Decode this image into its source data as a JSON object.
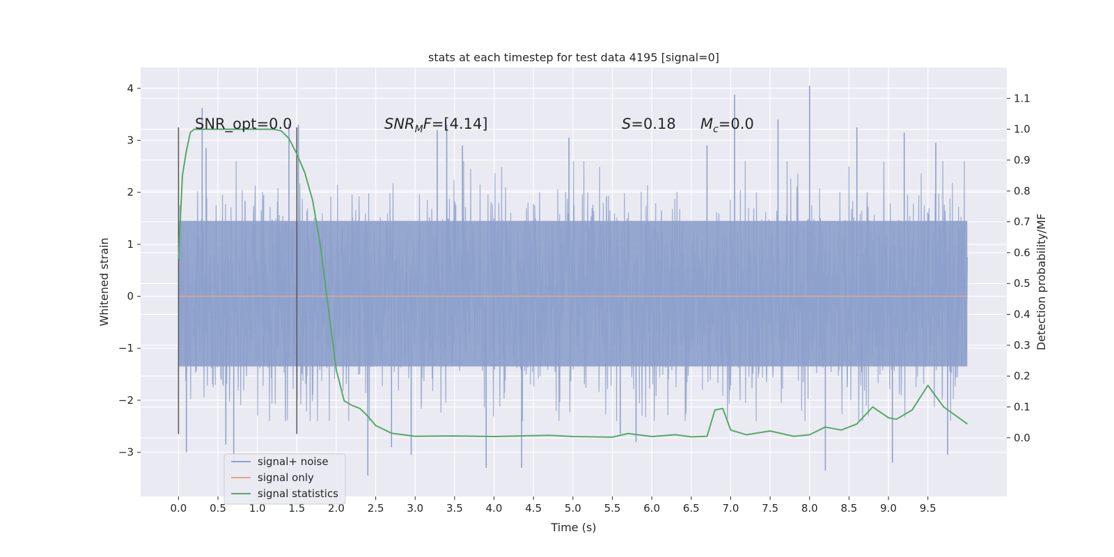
{
  "chart_data": {
    "type": "line",
    "title": "stats at each timestep for test data 4195 [signal=0]",
    "xlabel": "Time (s)",
    "ylabel": "Whitened strain",
    "y2label": "Detection probability/MF",
    "xlim": [
      -0.48,
      10.5
    ],
    "ylim": [
      -3.85,
      4.4
    ],
    "y2lim": [
      -0.19,
      1.2
    ],
    "x_ticks": [
      "0.0",
      "0.5",
      "1.0",
      "1.5",
      "2.0",
      "2.5",
      "3.0",
      "3.5",
      "4.0",
      "4.5",
      "5.0",
      "5.5",
      "6.0",
      "6.5",
      "7.0",
      "7.5",
      "8.0",
      "8.5",
      "9.0",
      "9.5"
    ],
    "y_ticks": [
      "−3",
      "−2",
      "−1",
      "0",
      "1",
      "2",
      "3",
      "4"
    ],
    "y2_ticks": [
      "0.0",
      "0.1",
      "0.2",
      "0.3",
      "0.4",
      "0.5",
      "0.6",
      "0.7",
      "0.8",
      "0.9",
      "1.0",
      "1.1"
    ],
    "grid": true,
    "legend_position": "lower-left",
    "annotations": {
      "snr_opt": "SNR_opt=0.0",
      "snr_mf_label": "SNR",
      "snr_mf_sub": "M",
      "snr_mf_f": "F",
      "snr_mf_value": "=[4.14]",
      "s_label": "S",
      "s_value": "=0.18",
      "mc_label": "M",
      "mc_sub": "c",
      "mc_value": "=0.0"
    },
    "vertical_lines": [
      {
        "x": 0.0,
        "y_range": [
          -2.65,
          3.25
        ]
      },
      {
        "x": 1.5,
        "y_range": [
          -2.65,
          3.25
        ]
      }
    ],
    "series": [
      {
        "name": "signal+ noise",
        "color": "#8da0cb",
        "x_range": [
          0.0,
          10.0
        ],
        "noise_band": [
          -1.35,
          1.45
        ],
        "peaks": [
          {
            "x": 0.02,
            "y": 1.75
          },
          {
            "x": 0.1,
            "y": -3.0
          },
          {
            "x": 0.3,
            "y": 3.62
          },
          {
            "x": 0.35,
            "y": 2.85
          },
          {
            "x": 0.6,
            "y": -2.85
          },
          {
            "x": 0.7,
            "y": -3.2
          },
          {
            "x": 1.4,
            "y": 3.32
          },
          {
            "x": 1.52,
            "y": 3.3
          },
          {
            "x": 2.4,
            "y": -3.45
          },
          {
            "x": 2.7,
            "y": -2.9
          },
          {
            "x": 2.95,
            "y": -3.05
          },
          {
            "x": 3.28,
            "y": 3.2
          },
          {
            "x": 3.4,
            "y": 3.3
          },
          {
            "x": 3.6,
            "y": 2.9
          },
          {
            "x": 3.9,
            "y": -3.3
          },
          {
            "x": 4.35,
            "y": -3.3
          },
          {
            "x": 4.95,
            "y": 3.05
          },
          {
            "x": 5.6,
            "y": -2.65
          },
          {
            "x": 5.8,
            "y": -2.8
          },
          {
            "x": 6.7,
            "y": 2.9
          },
          {
            "x": 7.05,
            "y": 3.88
          },
          {
            "x": 7.6,
            "y": 3.4
          },
          {
            "x": 8.0,
            "y": 4.05
          },
          {
            "x": 8.2,
            "y": -3.35
          },
          {
            "x": 8.6,
            "y": 3.25
          },
          {
            "x": 9.05,
            "y": -3.2
          },
          {
            "x": 9.2,
            "y": 3.15
          },
          {
            "x": 9.6,
            "y": 2.95
          },
          {
            "x": 9.75,
            "y": -3.05
          }
        ]
      },
      {
        "name": "signal only",
        "color": "#e5a58c",
        "x": [
          0.0,
          10.0
        ],
        "y": [
          0.0,
          0.0
        ]
      },
      {
        "name": "signal statistics",
        "color": "#55a868",
        "axis": "right",
        "x": [
          0.0,
          0.05,
          0.1,
          0.15,
          0.2,
          0.3,
          0.5,
          0.8,
          1.0,
          1.2,
          1.3,
          1.4,
          1.5,
          1.6,
          1.7,
          1.8,
          1.9,
          2.0,
          2.1,
          2.2,
          2.3,
          2.4,
          2.5,
          2.7,
          3.0,
          3.5,
          4.0,
          4.5,
          4.7,
          5.0,
          5.5,
          5.7,
          6.0,
          6.3,
          6.5,
          6.7,
          6.8,
          6.9,
          7.0,
          7.2,
          7.5,
          7.8,
          8.0,
          8.2,
          8.4,
          8.6,
          8.8,
          9.0,
          9.1,
          9.3,
          9.5,
          9.7,
          10.0
        ],
        "y": [
          0.58,
          0.85,
          0.93,
          0.99,
          1.0,
          1.0,
          1.0,
          1.0,
          1.0,
          1.0,
          0.995,
          0.97,
          0.92,
          0.86,
          0.77,
          0.62,
          0.42,
          0.22,
          0.12,
          0.105,
          0.095,
          0.07,
          0.04,
          0.015,
          0.005,
          0.006,
          0.004,
          0.007,
          0.008,
          0.004,
          0.002,
          0.014,
          0.004,
          0.01,
          0.003,
          0.005,
          0.09,
          0.095,
          0.025,
          0.01,
          0.022,
          0.005,
          0.01,
          0.035,
          0.025,
          0.045,
          0.1,
          0.065,
          0.06,
          0.09,
          0.17,
          0.1,
          0.045
        ]
      }
    ]
  }
}
